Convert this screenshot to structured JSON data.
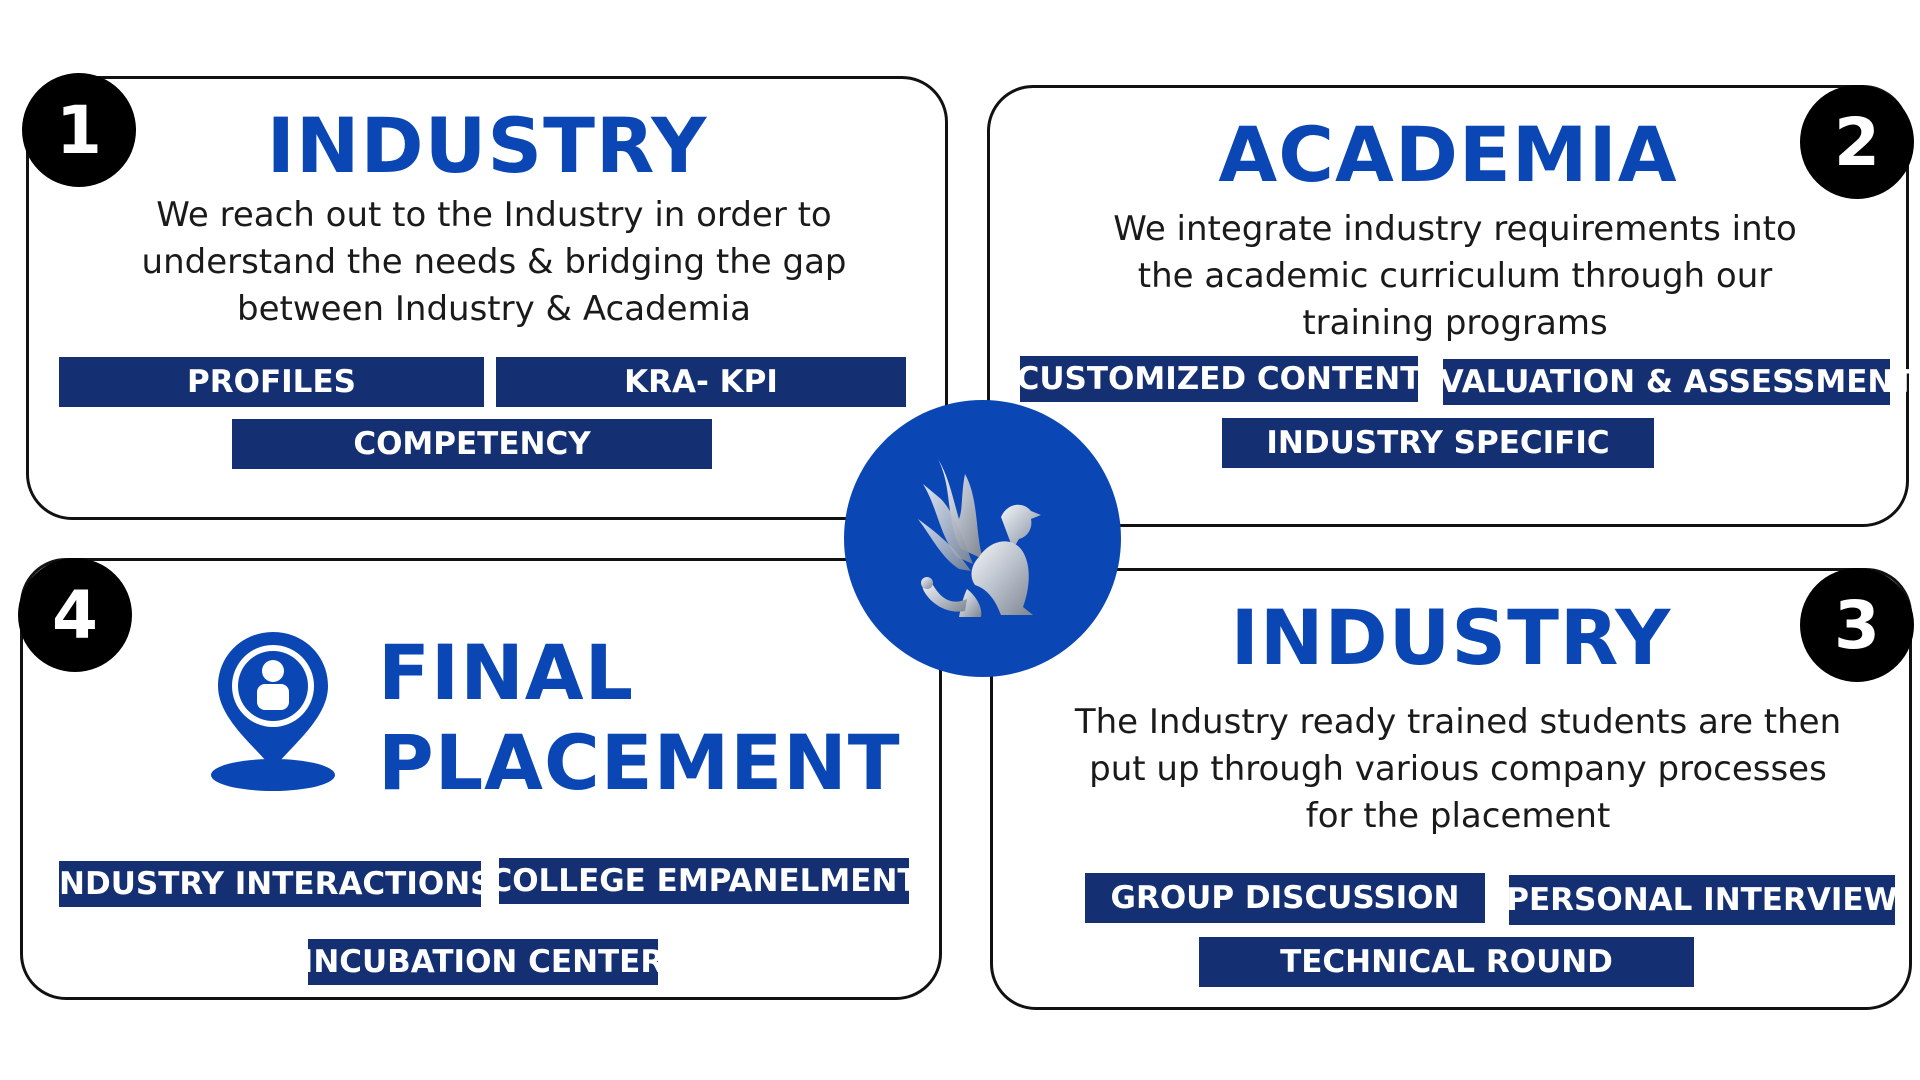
{
  "steps": [
    {
      "number": "1",
      "title": "INDUSTRY",
      "description": "We reach out to the Industry in order to understand the needs & bridging the gap between Industry & Academia",
      "tags": [
        "PROFILES",
        "KRA- KPI",
        "COMPETENCY"
      ]
    },
    {
      "number": "2",
      "title": "ACADEMIA",
      "description": "We integrate industry requirements into the academic curriculum through our training programs",
      "tags": [
        "CUSTOMIZED CONTENT",
        "EVALUATION & ASSESSMENT",
        "INDUSTRY SPECIFIC"
      ]
    },
    {
      "number": "3",
      "title": "INDUSTRY",
      "description": "The Industry ready trained students are then put up through various company processes for the placement",
      "tags": [
        "GROUP DISCUSSION",
        "PERSONAL INTERVIEW",
        "TECHNICAL ROUND"
      ]
    },
    {
      "number": "4",
      "title_line1": "FINAL",
      "title_line2": "PLACEMENT",
      "icon": "location-person-icon",
      "tags": [
        "INDUSTRY INTERACTIONS",
        "COLLEGE EMPANELMENT",
        "INCUBATION CENTER"
      ]
    }
  ],
  "center_logo": "griffin-logo",
  "colors": {
    "accent_blue": "#0a47b5",
    "tag_navy": "#142f72",
    "badge_black": "#000000"
  }
}
